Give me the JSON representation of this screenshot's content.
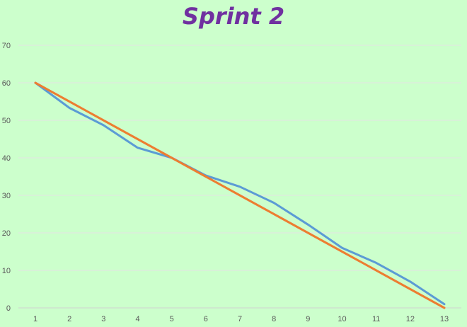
{
  "chart_data": {
    "type": "line",
    "title": "Sprint 2",
    "xlabel": "",
    "ylabel": "",
    "categories": [
      "1",
      "2",
      "3",
      "4",
      "5",
      "6",
      "7",
      "8",
      "9",
      "10",
      "11",
      "12",
      "13"
    ],
    "ylim": [
      0,
      70
    ],
    "yticks": [
      "0",
      "10",
      "20",
      "30",
      "40",
      "50",
      "60",
      "70"
    ],
    "grid": true,
    "legend": "none",
    "series": [
      {
        "color": "#5b9bd5",
        "values": [
          60,
          53.3,
          48.7,
          42.7,
          40,
          35.3,
          32.3,
          28,
          22.2,
          16,
          12,
          7,
          1
        ]
      },
      {
        "color": "#ed7d31",
        "values": [
          60,
          55,
          50,
          45,
          40,
          35,
          30,
          25,
          20,
          15,
          10,
          5,
          0
        ]
      }
    ]
  }
}
